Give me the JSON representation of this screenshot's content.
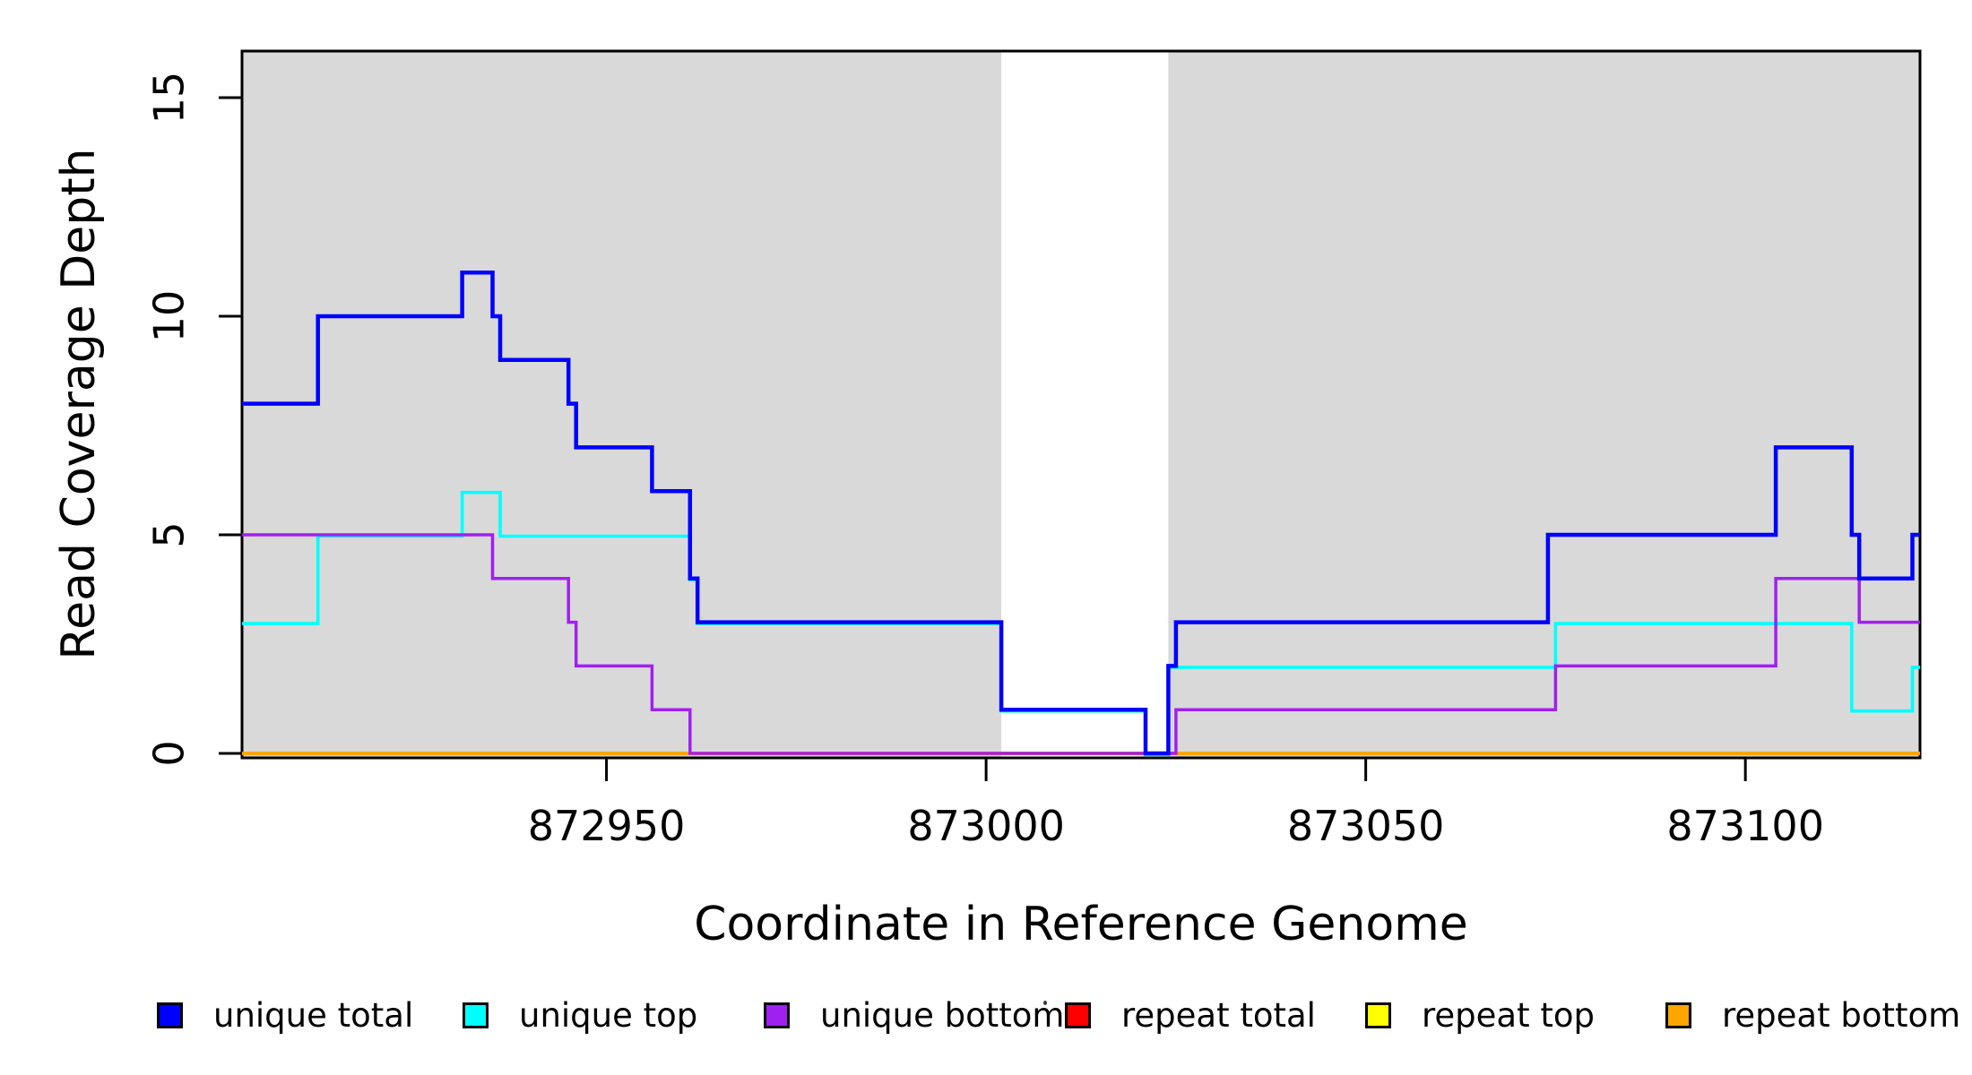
{
  "figure": {
    "kind": "read-coverage-step-plot",
    "background_color": "#ffffff",
    "shaded_band_color": "#d9d9d9",
    "axis_color": "#000000"
  },
  "chart_data": {
    "type": "line",
    "subtype": "step",
    "title": "",
    "xlabel": "Coordinate in Reference Genome",
    "ylabel": "Read Coverage Depth",
    "xlim": [
      872902,
      873123
    ],
    "ylim": [
      0,
      16.2
    ],
    "x_ticks": [
      872950,
      873000,
      873050,
      873100
    ],
    "y_ticks": [
      0,
      5,
      10,
      15
    ],
    "grid": false,
    "legend_position": "bottom",
    "shaded_regions": [
      {
        "x0": 872902,
        "x1": 873002
      },
      {
        "x0": 873024,
        "x1": 873123
      }
    ],
    "series": [
      {
        "name": "repeat total",
        "color": "#ff0000",
        "steps": [
          [
            872902,
            0
          ],
          [
            873123,
            0
          ]
        ]
      },
      {
        "name": "repeat top",
        "color": "#ffff00",
        "steps": [
          [
            872902,
            0
          ],
          [
            873123,
            0
          ]
        ]
      },
      {
        "name": "repeat bottom",
        "color": "#ffa500",
        "steps": [
          [
            872902,
            0
          ],
          [
            873123,
            0
          ]
        ]
      },
      {
        "name": "unique top",
        "color": "#00ffff",
        "steps": [
          [
            872902,
            3
          ],
          [
            872912,
            5
          ],
          [
            872931,
            6
          ],
          [
            872936,
            5
          ],
          [
            872961,
            4
          ],
          [
            872962,
            3
          ],
          [
            873002,
            1
          ],
          [
            873021,
            0
          ],
          [
            873024,
            2
          ],
          [
            873075,
            3
          ],
          [
            873114,
            1
          ],
          [
            873122,
            2
          ],
          [
            873123,
            2
          ]
        ]
      },
      {
        "name": "unique bottom",
        "color": "#a020f0",
        "steps": [
          [
            872902,
            5
          ],
          [
            872935,
            4
          ],
          [
            872945,
            3
          ],
          [
            872946,
            2
          ],
          [
            872956,
            1
          ],
          [
            872961,
            0
          ],
          [
            873025,
            1
          ],
          [
            873075,
            2
          ],
          [
            873104,
            4
          ],
          [
            873115,
            3
          ],
          [
            873123,
            3
          ]
        ]
      },
      {
        "name": "unique total",
        "color": "#0000ff",
        "steps": [
          [
            872902,
            8
          ],
          [
            872912,
            10
          ],
          [
            872931,
            11
          ],
          [
            872935,
            10
          ],
          [
            872936,
            9
          ],
          [
            872945,
            8
          ],
          [
            872946,
            7
          ],
          [
            872956,
            6
          ],
          [
            872961,
            4
          ],
          [
            872962,
            3
          ],
          [
            873002,
            1
          ],
          [
            873021,
            0
          ],
          [
            873024,
            2
          ],
          [
            873025,
            3
          ],
          [
            873074,
            5
          ],
          [
            873104,
            7
          ],
          [
            873114,
            5
          ],
          [
            873115,
            4
          ],
          [
            873122,
            5
          ],
          [
            873123,
            5
          ]
        ]
      }
    ],
    "legend": [
      {
        "label": "unique total",
        "color": "#0000ff"
      },
      {
        "label": "unique top",
        "color": "#00ffff"
      },
      {
        "label": "unique bottom",
        "color": "#a020f0"
      },
      {
        "label": "repeat total",
        "color": "#ff0000"
      },
      {
        "label": "repeat top",
        "color": "#ffff00"
      },
      {
        "label": "repeat bottom",
        "color": "#ffa500"
      }
    ]
  }
}
